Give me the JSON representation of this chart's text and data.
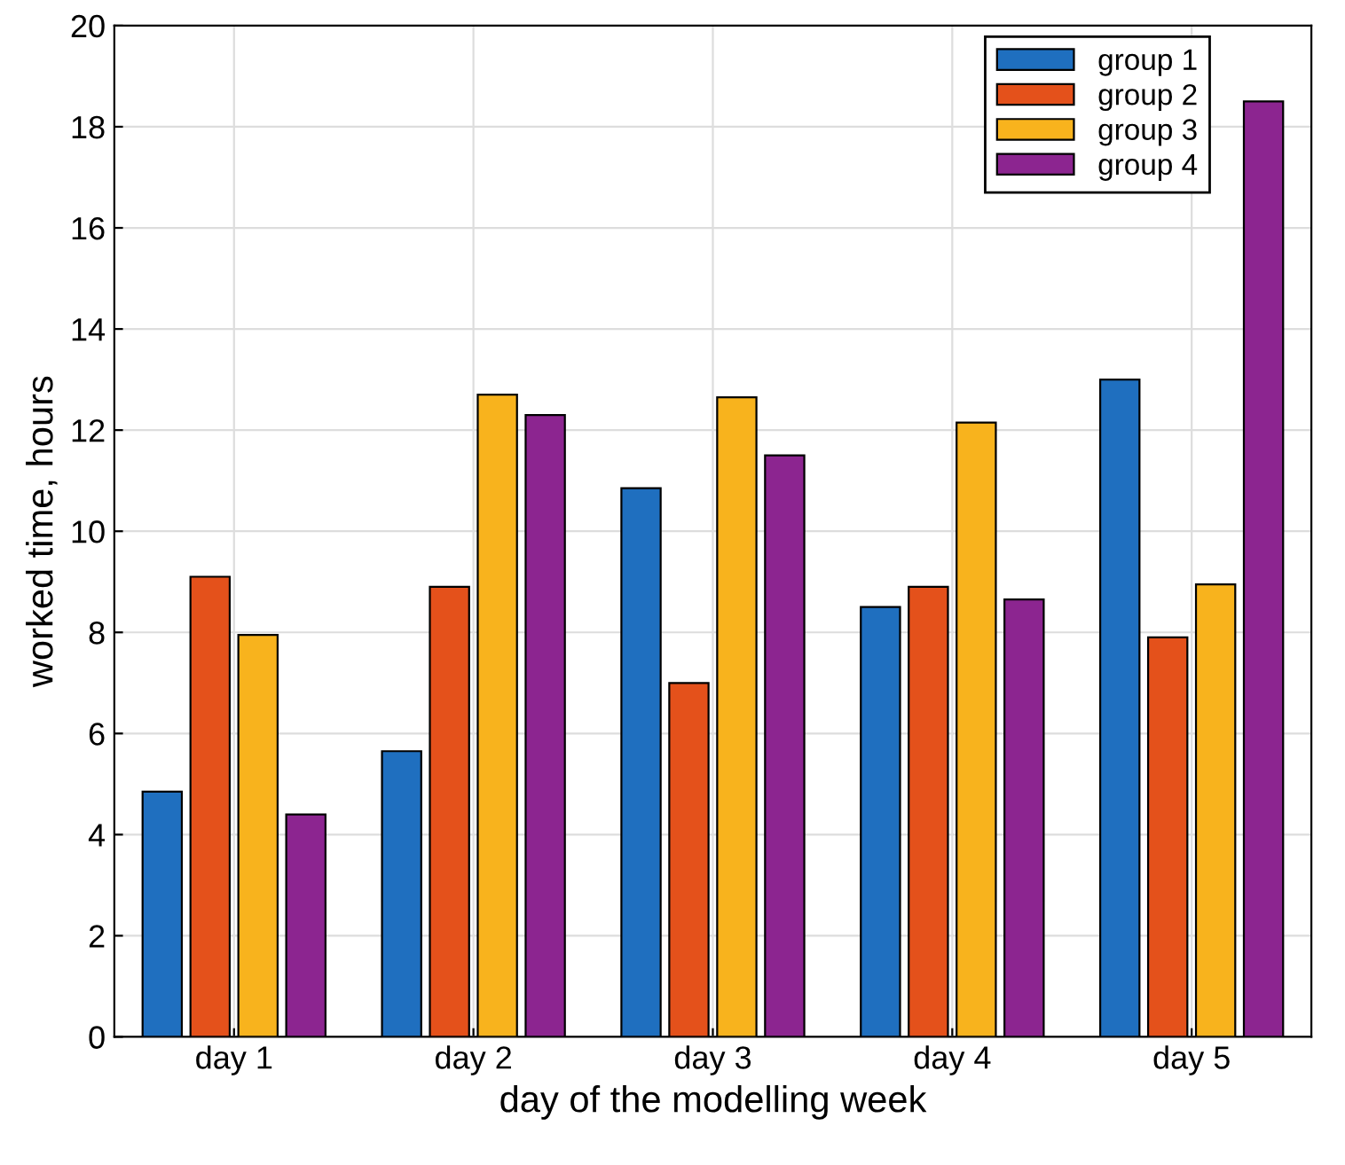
{
  "chart_data": {
    "type": "bar",
    "xlabel": "day of the modelling week",
    "ylabel": "worked time, hours",
    "categories": [
      "day 1",
      "day 2",
      "day 3",
      "day 4",
      "day 5"
    ],
    "series": [
      {
        "name": "group 1",
        "color": "#1f6fbf",
        "values": [
          4.85,
          5.65,
          10.85,
          8.5,
          13.0
        ]
      },
      {
        "name": "group 2",
        "color": "#e4511b",
        "values": [
          9.1,
          8.9,
          7.0,
          8.9,
          7.9
        ]
      },
      {
        "name": "group 3",
        "color": "#f8b31d",
        "values": [
          7.95,
          12.7,
          12.65,
          12.15,
          8.95
        ]
      },
      {
        "name": "group 4",
        "color": "#8c2590",
        "values": [
          4.4,
          12.3,
          11.5,
          8.65,
          18.5
        ]
      }
    ],
    "ylim": [
      0,
      20
    ],
    "yticks": [
      0,
      2,
      4,
      6,
      8,
      10,
      12,
      14,
      16,
      18,
      20
    ],
    "grid": true,
    "legend": "top right"
  }
}
